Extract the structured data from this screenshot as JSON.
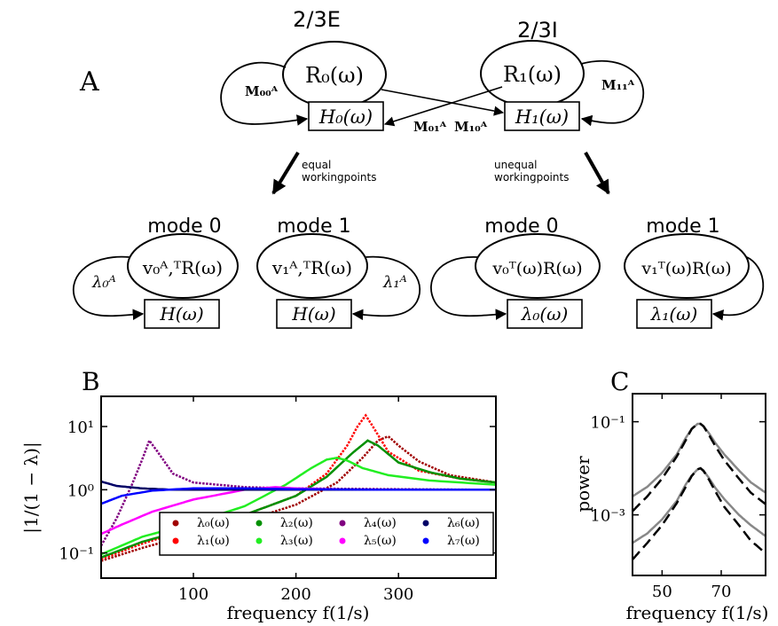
{
  "panel_a": {
    "label": "A",
    "top": {
      "left_title": "2/3E",
      "right_title": "2/3I",
      "r0": "R₀(ω)",
      "r1": "R₁(ω)",
      "h0": "H₀(ω)",
      "h1": "H₁(ω)",
      "m00": "M₀₀ᴬ",
      "m11": "M₁₁ᴬ",
      "m01": "M₀₁ᴬ",
      "m10": "M₁₀ᴬ"
    },
    "arrows": {
      "left_line1": "equal",
      "left_line2": "workingpoints",
      "right_line1": "unequal",
      "right_line2": "workingpoints"
    },
    "bottom_equal": {
      "mode0_title": "mode 0",
      "mode1_title": "mode 1",
      "mode0_node": "v₀ᴬ,ᵀR(ω)",
      "mode1_node": "v₁ᴬ,ᵀR(ω)",
      "mode0_box": "H(ω)",
      "mode1_box": "H(ω)",
      "lambda0": "λ₀ᴬ",
      "lambda1": "λ₁ᴬ"
    },
    "bottom_unequal": {
      "mode0_title": "mode 0",
      "mode1_title": "mode 1",
      "mode0_node": "v₀ᵀ(ω)R(ω)",
      "mode1_node": "v₁ᵀ(ω)R(ω)",
      "mode0_box": "λ₀(ω)",
      "mode1_box": "λ₁(ω)"
    }
  },
  "panel_b_label": "B",
  "panel_c_label": "C",
  "chart_data": [
    {
      "type": "line",
      "panel": "B",
      "xlabel": "frequency f(1/s)",
      "ylabel": "|1/(1 − λ)|",
      "y_scale": "log",
      "xlim": [
        10,
        395
      ],
      "ylim": [
        0.04,
        30
      ],
      "xticks": [
        100,
        200,
        300
      ],
      "yticks": [
        {
          "value": 0.1,
          "label": "10⁻¹"
        },
        {
          "value": 1,
          "label": "10⁰"
        },
        {
          "value": 10,
          "label": "10¹"
        }
      ],
      "legend_position": "lower-right",
      "series": [
        {
          "name": "λ₀(ω)",
          "color": "#a00000",
          "style": "dotted",
          "x": [
            10,
            50,
            100,
            150,
            200,
            240,
            265,
            280,
            290,
            300,
            320,
            350,
            395
          ],
          "y": [
            0.075,
            0.12,
            0.2,
            0.32,
            0.58,
            1.3,
            3.2,
            6.0,
            7.0,
            5.0,
            2.8,
            1.7,
            1.3
          ]
        },
        {
          "name": "λ₁(ω)",
          "color": "#ff0000",
          "style": "dotted",
          "x": [
            10,
            50,
            100,
            150,
            200,
            230,
            250,
            260,
            268,
            275,
            290,
            320,
            360,
            395
          ],
          "y": [
            0.08,
            0.14,
            0.25,
            0.4,
            0.8,
            1.8,
            5.0,
            10.0,
            15.0,
            10.0,
            4.0,
            2.0,
            1.5,
            1.3
          ]
        },
        {
          "name": "λ₂(ω)",
          "color": "#009000",
          "style": "solid",
          "x": [
            10,
            50,
            100,
            150,
            200,
            230,
            255,
            270,
            280,
            300,
            330,
            360,
            395
          ],
          "y": [
            0.085,
            0.15,
            0.25,
            0.4,
            0.8,
            1.6,
            3.8,
            6.0,
            5.0,
            2.7,
            1.9,
            1.5,
            1.3
          ]
        },
        {
          "name": "λ₃(ω)",
          "color": "#22ee22",
          "style": "solid",
          "x": [
            10,
            50,
            100,
            150,
            190,
            215,
            230,
            240,
            250,
            265,
            290,
            330,
            395
          ],
          "y": [
            0.095,
            0.18,
            0.3,
            0.55,
            1.2,
            2.2,
            3.0,
            3.2,
            2.9,
            2.2,
            1.7,
            1.4,
            1.2
          ]
        },
        {
          "name": "λ₄(ω)",
          "color": "#800080",
          "style": "dotted",
          "x": [
            10,
            25,
            40,
            50,
            57,
            65,
            80,
            100,
            150,
            200,
            300,
            395
          ],
          "y": [
            0.13,
            0.35,
            1.2,
            3.0,
            6.0,
            4.0,
            1.8,
            1.3,
            1.1,
            1.05,
            1.02,
            1.0
          ]
        },
        {
          "name": "λ₅(ω)",
          "color": "#ff00ff",
          "style": "solid",
          "x": [
            10,
            30,
            60,
            100,
            150,
            180,
            200,
            250,
            300,
            395
          ],
          "y": [
            0.2,
            0.28,
            0.45,
            0.7,
            1.0,
            1.1,
            1.05,
            1.0,
            1.0,
            1.0
          ]
        },
        {
          "name": "λ₆(ω)",
          "color": "#000066",
          "style": "solid",
          "x": [
            10,
            25,
            50,
            80,
            120,
            200,
            300,
            395
          ],
          "y": [
            1.35,
            1.15,
            1.05,
            1.0,
            1.0,
            1.0,
            1.0,
            1.0
          ]
        },
        {
          "name": "λ₇(ω)",
          "color": "#0000ff",
          "style": "solid",
          "x": [
            10,
            30,
            60,
            100,
            150,
            200,
            300,
            395
          ],
          "y": [
            0.6,
            0.8,
            0.97,
            1.05,
            1.05,
            1.02,
            1.0,
            1.0
          ]
        }
      ]
    },
    {
      "type": "line",
      "panel": "C",
      "xlabel": "frequency f(1/s)",
      "ylabel": "power",
      "y_scale": "log",
      "xlim": [
        40,
        85
      ],
      "ylim": [
        5e-05,
        0.4
      ],
      "xticks": [
        50,
        70
      ],
      "yticks": [
        {
          "value": 0.001,
          "label": "10⁻³"
        },
        {
          "value": 0.1,
          "label": "10⁻¹"
        }
      ],
      "series": [
        {
          "color": "#888888",
          "style": "solid",
          "x": [
            40,
            45,
            50,
            55,
            58,
            60,
            62,
            63,
            64,
            66,
            68,
            71,
            76,
            80,
            85
          ],
          "y": [
            0.0025,
            0.004,
            0.008,
            0.02,
            0.045,
            0.07,
            0.09,
            0.09,
            0.08,
            0.055,
            0.035,
            0.02,
            0.009,
            0.005,
            0.003
          ]
        },
        {
          "color": "#000000",
          "style": "dashed",
          "x": [
            40,
            45,
            50,
            55,
            58,
            60,
            62,
            63,
            64,
            66,
            68,
            71,
            76,
            80,
            85
          ],
          "y": [
            0.0012,
            0.0025,
            0.006,
            0.018,
            0.04,
            0.07,
            0.09,
            0.09,
            0.08,
            0.05,
            0.03,
            0.015,
            0.006,
            0.003,
            0.0017
          ]
        },
        {
          "color": "#888888",
          "style": "solid",
          "x": [
            40,
            45,
            50,
            55,
            58,
            60,
            62,
            63,
            64,
            66,
            68,
            71,
            76,
            80,
            85
          ],
          "y": [
            0.00025,
            0.0004,
            0.0008,
            0.002,
            0.0045,
            0.007,
            0.0095,
            0.01,
            0.009,
            0.006,
            0.0038,
            0.0022,
            0.001,
            0.0006,
            0.00035
          ]
        },
        {
          "color": "#000000",
          "style": "dashed",
          "x": [
            40,
            45,
            50,
            55,
            58,
            60,
            62,
            63,
            64,
            66,
            68,
            71,
            76,
            80,
            85
          ],
          "y": [
            0.00011,
            0.00025,
            0.0006,
            0.0018,
            0.004,
            0.0068,
            0.0095,
            0.01,
            0.0088,
            0.0055,
            0.0032,
            0.0015,
            0.0006,
            0.00028,
            0.00015
          ]
        }
      ]
    }
  ],
  "panel_b_legend": [
    "λ₀(ω)",
    "λ₁(ω)",
    "λ₂(ω)",
    "λ₃(ω)",
    "λ₄(ω)",
    "λ₅(ω)",
    "λ₆(ω)",
    "λ₇(ω)"
  ],
  "labels": {
    "b_xlabel": "frequency f(1/s)",
    "b_ylabel": "|1/(1 − λ)|",
    "c_xlabel": "frequency f(1/s)",
    "c_ylabel": "power"
  }
}
